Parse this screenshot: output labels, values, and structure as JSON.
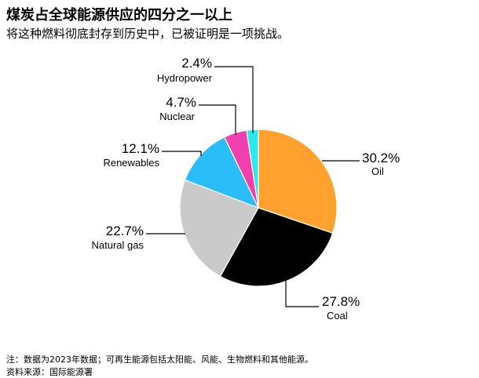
{
  "header": {
    "title": "煤炭占全球能源供应的四分之一以上",
    "subtitle": "将这种燃料彻底封存到历史中，已被证明是一项挑战。"
  },
  "footer": {
    "note": "注：数据为2023年数据；可再生能源包括太阳能、风能、生物燃料和其他能源。",
    "source": "资料来源：国际能源署"
  },
  "chart_data": {
    "type": "pie",
    "start_angle_deg": 0,
    "direction": "clockwise",
    "slices": [
      {
        "name": "Oil",
        "value": 30.2,
        "label": "30.2%",
        "color": "#FFA12E"
      },
      {
        "name": "Coal",
        "value": 27.8,
        "label": "27.8%",
        "color": "#000000"
      },
      {
        "name": "Natural gas",
        "value": 22.7,
        "label": "22.7%",
        "color": "#CACACA"
      },
      {
        "name": "Renewables",
        "value": 12.1,
        "label": "12.1%",
        "color": "#2BBDF7"
      },
      {
        "name": "Nuclear",
        "value": 4.7,
        "label": "4.7%",
        "color": "#F040B0"
      },
      {
        "name": "Hydropower",
        "value": 2.4,
        "label": "2.4%",
        "color": "#2EE8F0"
      }
    ]
  }
}
